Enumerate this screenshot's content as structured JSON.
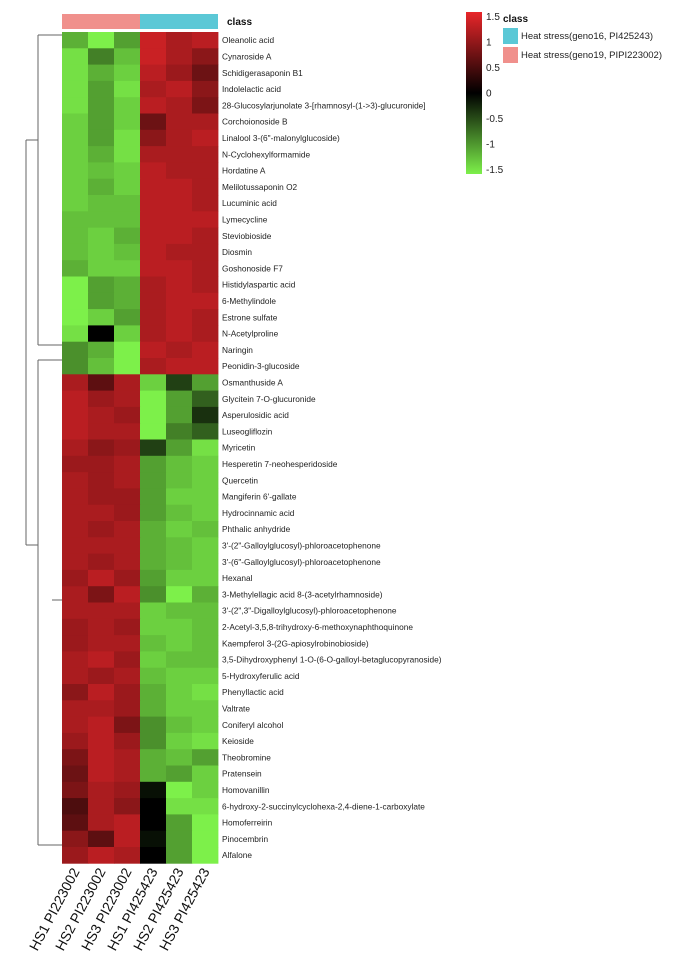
{
  "chart_data": {
    "type": "heatmap",
    "column_class_label": "class",
    "columns": [
      "HS1 PI223002",
      "HS2 PI223002",
      "HS3 PI223002",
      "HS1 PI425423",
      "HS2 PI425423",
      "HS3 PI425423"
    ],
    "column_classes": [
      "Heat stress(geno19, PIPI223002)",
      "Heat stress(geno19, PIPI223002)",
      "Heat stress(geno19, PIPI223002)",
      "Heat stress(geno16, PI425243)",
      "Heat stress(geno16, PI425243)",
      "Heat stress(geno16, PI425243)"
    ],
    "class_legend": {
      "title": "class",
      "entries": [
        {
          "label": "Heat stress(geno16, PI425243)",
          "color": "#5bc8d6"
        },
        {
          "label": "Heat stress(geno19, PIPI223002)",
          "color": "#f0908c"
        }
      ]
    },
    "color_scale": {
      "min": -1.5,
      "max": 1.5,
      "ticks": [
        "1.5",
        "1",
        "0.5",
        "0",
        "-0.5",
        "-1",
        "-1.5"
      ],
      "low_color": "#7df04a",
      "mid_color": "#000000",
      "high_color": "#e8262a"
    },
    "rows": [
      "Oleanolic acid",
      "Cynaroside A",
      "Schidigerasaponin B1",
      "Indolelactic acid",
      "28-Glucosylarjunolate 3-[rhamnosyl-(1->3)-glucuronide]",
      "Corchoionoside B",
      "Linalool 3-(6\"-malonylglucoside)",
      "N-Cyclohexylformamide",
      "Hordatine A",
      "Melilotussaponin O2",
      "Lucuminic acid",
      "Lymecycline",
      "Steviobioside",
      "Diosmin",
      "Goshonoside F7",
      "Histidylaspartic acid",
      "6-Methylindole",
      "Estrone sulfate",
      "N-Acetylproline",
      "Naringin",
      "Peonidin-3-glucoside",
      "Osmanthuside A",
      "Glycitein 7-O-glucuronide",
      "Asperulosidic acid",
      "Luseogliflozin",
      "Myricetin",
      "Hesperetin 7-neohesperidoside",
      "Quercetin",
      "Mangiferin 6'-gallate",
      "Hydrocinnamic acid",
      "Phthalic anhydride",
      "3'-(2\"-Galloylglucosyl)-phloroacetophenone",
      "3'-(6\"-Galloylglucosyl)-phloroacetophenone",
      "Hexanal",
      "3-Methylellagic acid 8-(3-acetylrhamnoside)",
      "3'-(2\",3\"-Digalloylglucosyl)-phloroacetophenone",
      "2-Acetyl-3,5,8-trihydroxy-6-methoxynaphthoquinone",
      "Kaempferol 3-(2G-apiosylrobinobioside)",
      "3,5-Dihydroxyphenyl 1-O-(6-O-galloyl-betaglucopyranoside)",
      "5-Hydroxyferulic acid",
      "Phenyllactic acid",
      "Valtrate",
      "Coniferyl alcohol",
      "Keioside",
      "Theobromine",
      "Pratensein",
      "Homovanillin",
      "6-hydroxy-2-succinylcyclohexa-2,4-diene-1-carboxylate",
      "Homoferreirin",
      "Pinocembrin",
      "Alfalone"
    ],
    "values": [
      [
        -1.1,
        -1.5,
        -1.0,
        1.3,
        1.1,
        1.2
      ],
      [
        -1.4,
        -0.8,
        -1.2,
        1.3,
        1.1,
        0.9
      ],
      [
        -1.4,
        -1.1,
        -1.3,
        1.2,
        1.0,
        0.7
      ],
      [
        -1.4,
        -1.0,
        -1.4,
        1.1,
        1.2,
        0.9
      ],
      [
        -1.4,
        -1.0,
        -1.3,
        1.2,
        1.1,
        0.8
      ],
      [
        -1.3,
        -1.0,
        -1.3,
        0.7,
        1.1,
        1.1
      ],
      [
        -1.3,
        -1.0,
        -1.4,
        0.9,
        1.1,
        1.2
      ],
      [
        -1.3,
        -1.1,
        -1.4,
        1.1,
        1.1,
        1.1
      ],
      [
        -1.3,
        -1.2,
        -1.3,
        1.2,
        1.1,
        1.1
      ],
      [
        -1.3,
        -1.1,
        -1.3,
        1.2,
        1.2,
        1.1
      ],
      [
        -1.3,
        -1.2,
        -1.2,
        1.2,
        1.2,
        1.1
      ],
      [
        -1.2,
        -1.2,
        -1.2,
        1.2,
        1.2,
        1.2
      ],
      [
        -1.2,
        -1.3,
        -1.1,
        1.2,
        1.2,
        1.1
      ],
      [
        -1.2,
        -1.3,
        -1.2,
        1.2,
        1.1,
        1.1
      ],
      [
        -1.1,
        -1.3,
        -1.3,
        1.2,
        1.2,
        1.1
      ],
      [
        -1.5,
        -1.0,
        -1.1,
        1.1,
        1.2,
        1.1
      ],
      [
        -1.5,
        -1.0,
        -1.1,
        1.1,
        1.2,
        1.2
      ],
      [
        -1.5,
        -1.3,
        -1.0,
        1.1,
        1.2,
        1.1
      ],
      [
        -1.4,
        0.0,
        -1.3,
        1.1,
        1.2,
        1.1
      ],
      [
        -0.9,
        -1.1,
        -1.5,
        1.2,
        1.1,
        1.2
      ],
      [
        -0.9,
        -1.2,
        -1.5,
        1.1,
        1.2,
        1.2
      ],
      [
        1.1,
        0.6,
        1.1,
        -1.3,
        -0.4,
        -1.0
      ],
      [
        1.2,
        1.0,
        1.1,
        -1.5,
        -1.0,
        -0.6
      ],
      [
        1.2,
        1.1,
        1.0,
        -1.5,
        -1.0,
        -0.3
      ],
      [
        1.2,
        1.1,
        1.1,
        -1.5,
        -0.8,
        -0.6
      ],
      [
        1.1,
        0.9,
        1.0,
        -0.4,
        -1.0,
        -1.4
      ],
      [
        1.0,
        1.0,
        1.1,
        -1.0,
        -1.2,
        -1.3
      ],
      [
        1.1,
        1.0,
        1.1,
        -1.0,
        -1.2,
        -1.3
      ],
      [
        1.1,
        1.0,
        1.0,
        -1.0,
        -1.3,
        -1.3
      ],
      [
        1.1,
        1.1,
        1.0,
        -1.0,
        -1.2,
        -1.3
      ],
      [
        1.1,
        1.0,
        1.1,
        -1.1,
        -1.3,
        -1.2
      ],
      [
        1.1,
        1.1,
        1.1,
        -1.1,
        -1.2,
        -1.3
      ],
      [
        1.1,
        1.0,
        1.1,
        -1.1,
        -1.2,
        -1.3
      ],
      [
        1.0,
        1.2,
        1.0,
        -1.0,
        -1.3,
        -1.3
      ],
      [
        1.1,
        0.8,
        1.2,
        -0.9,
        -1.5,
        -1.1
      ],
      [
        1.1,
        1.1,
        1.1,
        -1.3,
        -1.2,
        -1.2
      ],
      [
        1.0,
        1.1,
        1.0,
        -1.3,
        -1.3,
        -1.2
      ],
      [
        1.0,
        1.1,
        1.1,
        -1.2,
        -1.3,
        -1.2
      ],
      [
        1.1,
        1.2,
        1.0,
        -1.3,
        -1.2,
        -1.2
      ],
      [
        1.1,
        1.0,
        1.1,
        -1.2,
        -1.3,
        -1.3
      ],
      [
        0.9,
        1.2,
        1.0,
        -1.1,
        -1.3,
        -1.4
      ],
      [
        1.1,
        1.1,
        1.0,
        -1.1,
        -1.3,
        -1.3
      ],
      [
        1.1,
        1.2,
        0.8,
        -0.9,
        -1.2,
        -1.3
      ],
      [
        1.0,
        1.2,
        1.0,
        -0.9,
        -1.3,
        -1.4
      ],
      [
        0.8,
        1.2,
        1.1,
        -1.1,
        -1.2,
        -1.0
      ],
      [
        0.7,
        1.2,
        1.1,
        -1.1,
        -1.0,
        -1.3
      ],
      [
        0.8,
        1.1,
        1.0,
        -0.1,
        -1.5,
        -1.3
      ],
      [
        0.5,
        1.1,
        0.9,
        0.0,
        -1.4,
        -1.4
      ],
      [
        0.6,
        1.1,
        1.2,
        0.0,
        -1.0,
        -1.5
      ],
      [
        0.9,
        0.6,
        1.2,
        -0.1,
        -1.0,
        -1.5
      ],
      [
        1.0,
        1.2,
        1.1,
        0.0,
        -1.0,
        -1.5
      ]
    ]
  }
}
